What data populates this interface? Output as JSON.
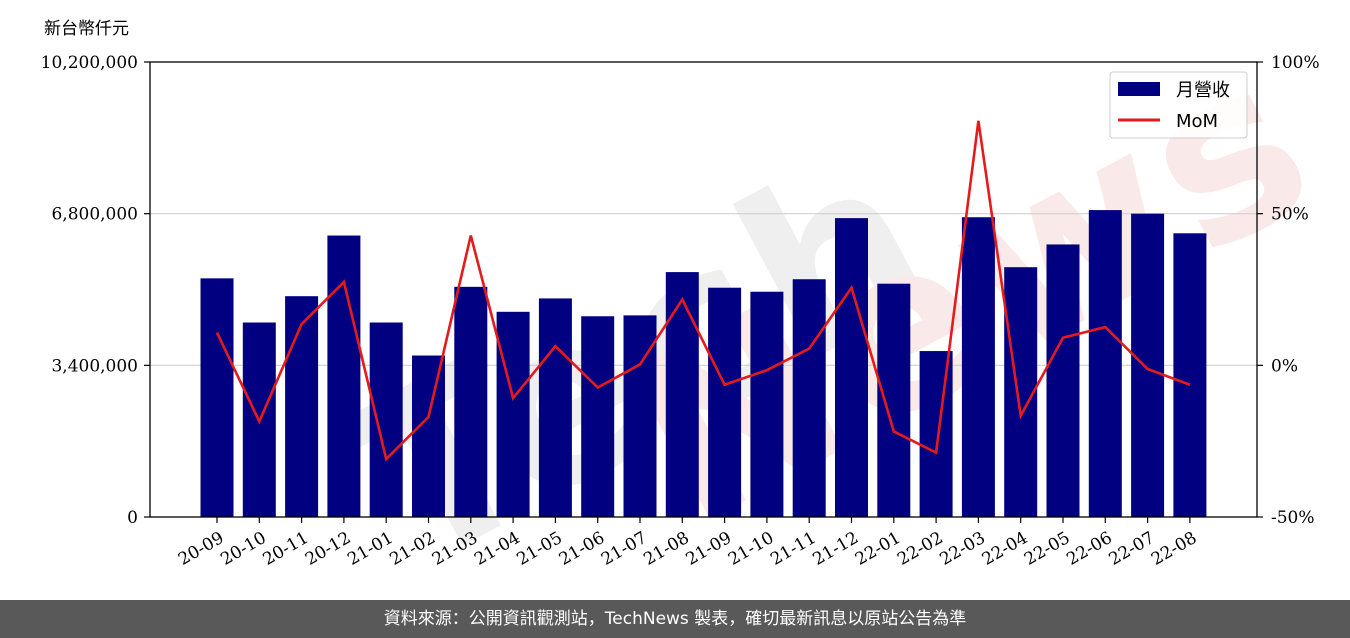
{
  "chart_data": {
    "type": "bar",
    "y_unit_label": "新台幣仟元",
    "categories": [
      "20-09",
      "20-10",
      "20-11",
      "20-12",
      "21-01",
      "21-02",
      "21-03",
      "21-04",
      "21-05",
      "21-06",
      "21-07",
      "21-08",
      "21-09",
      "21-10",
      "21-11",
      "21-12",
      "22-01",
      "22-02",
      "22-03",
      "22-04",
      "22-05",
      "22-06",
      "22-07",
      "22-08"
    ],
    "series": [
      {
        "name": "月營收",
        "type": "bar",
        "axis": "left",
        "color": "#000080",
        "values": [
          5350000,
          4360000,
          4950000,
          6310000,
          4360000,
          3620000,
          5160000,
          4600000,
          4900000,
          4500000,
          4520000,
          5490000,
          5140000,
          5050000,
          5330000,
          6700000,
          5230000,
          3720000,
          6720000,
          5600000,
          6110000,
          6880000,
          6800000,
          6360000
        ]
      },
      {
        "name": "MoM",
        "type": "line",
        "axis": "right",
        "color": "#e41a1c",
        "values": [
          10.8,
          -18.5,
          13.6,
          27.5,
          -30.9,
          -17.0,
          42.8,
          -10.8,
          6.3,
          -7.3,
          0.3,
          21.7,
          -6.4,
          -1.6,
          5.5,
          25.6,
          -21.8,
          -28.8,
          80.6,
          -16.6,
          9.1,
          12.6,
          -1.2,
          -6.4
        ]
      }
    ],
    "y_left": {
      "ylim": [
        0,
        10200000
      ],
      "ticks": [
        0,
        3400000,
        6800000,
        10200000
      ],
      "tick_labels": [
        "0",
        "3,400,000",
        "6,800,000",
        "10,200,000"
      ]
    },
    "y_right": {
      "ylim": [
        -50,
        100
      ],
      "ticks": [
        -50,
        0,
        50,
        100
      ],
      "tick_labels": [
        "-50%",
        "0%",
        "50%",
        "100%"
      ]
    },
    "grid": "horizontal",
    "legend_position": "top-right",
    "xtick_rotation": 30
  },
  "footer_text": "資料來源：公開資訊觀測站，TechNews 製表，確切最新訊息以原站公告為準"
}
